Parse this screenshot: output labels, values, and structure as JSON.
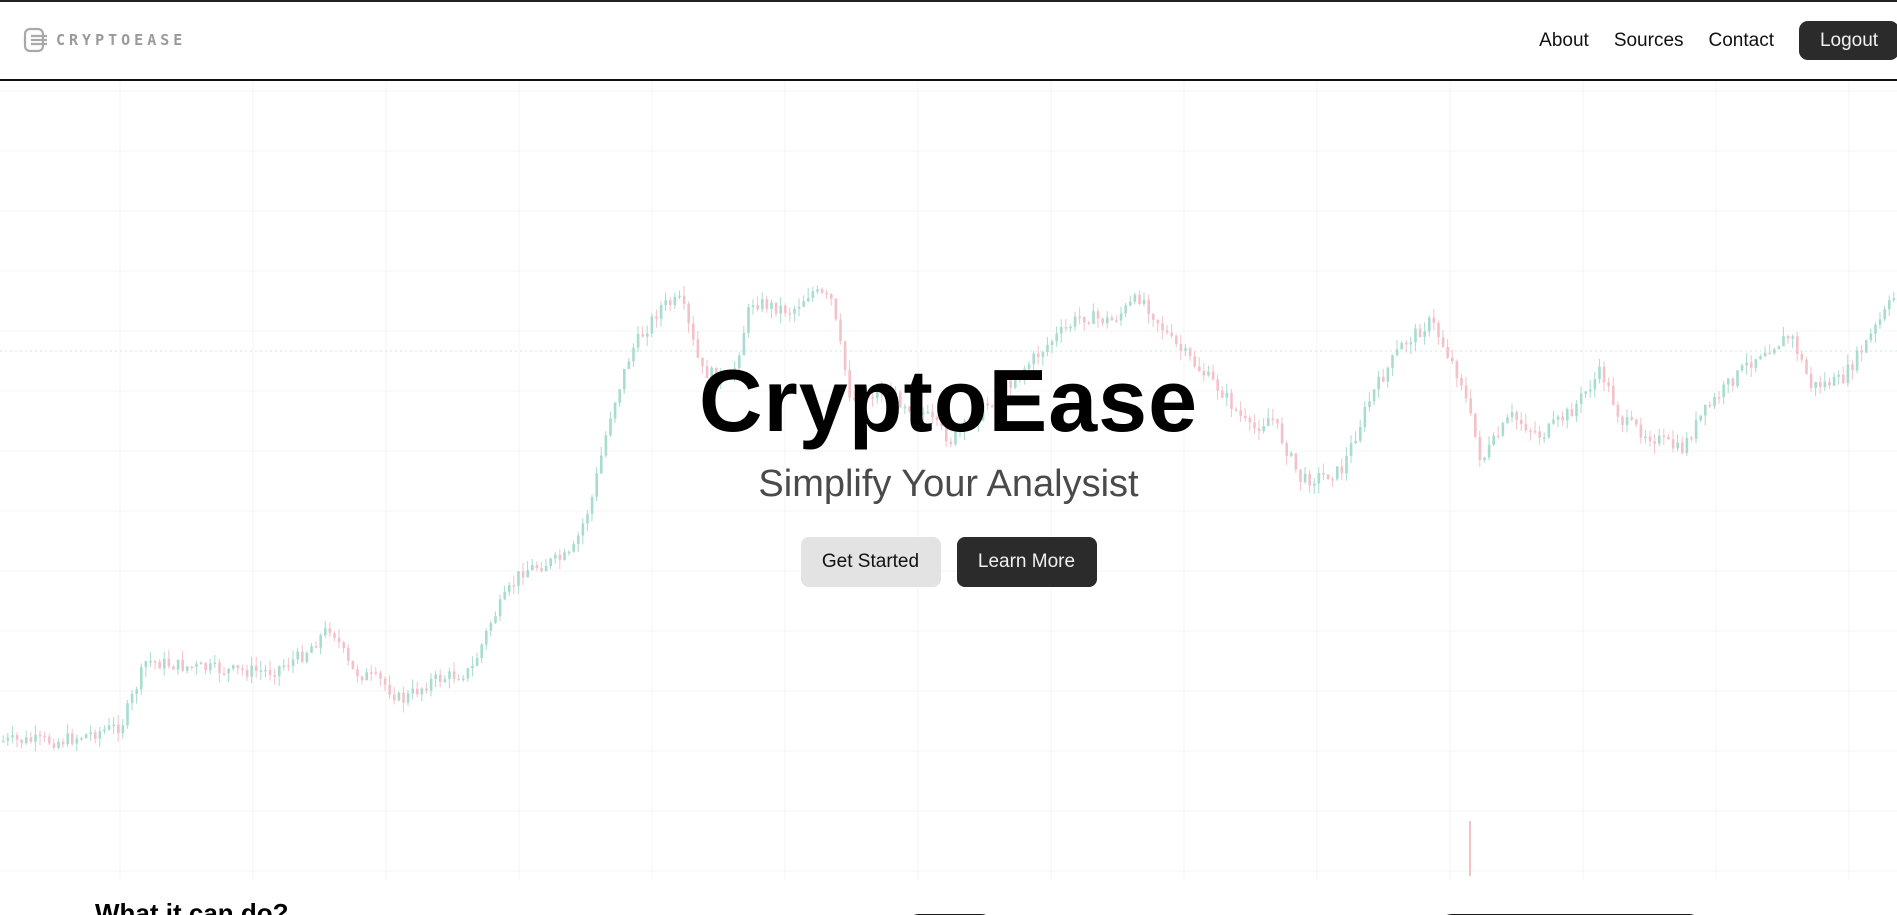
{
  "header": {
    "logo_text": "CRYPTOEASE",
    "logo_icon": "cryptoease-logo-icon",
    "nav": [
      {
        "label": "About"
      },
      {
        "label": "Sources"
      },
      {
        "label": "Contact"
      }
    ],
    "logout_label": "Logout"
  },
  "hero": {
    "title": "CryptoEase",
    "subtitle": "Simplify Your Analysist",
    "primary_button": "Get Started",
    "secondary_button": "Learn More",
    "background": "faded-candlestick-chart",
    "up_color": "#a8dccf",
    "down_color": "#f3c2c8"
  },
  "features": {
    "heading": "What it can do?"
  }
}
